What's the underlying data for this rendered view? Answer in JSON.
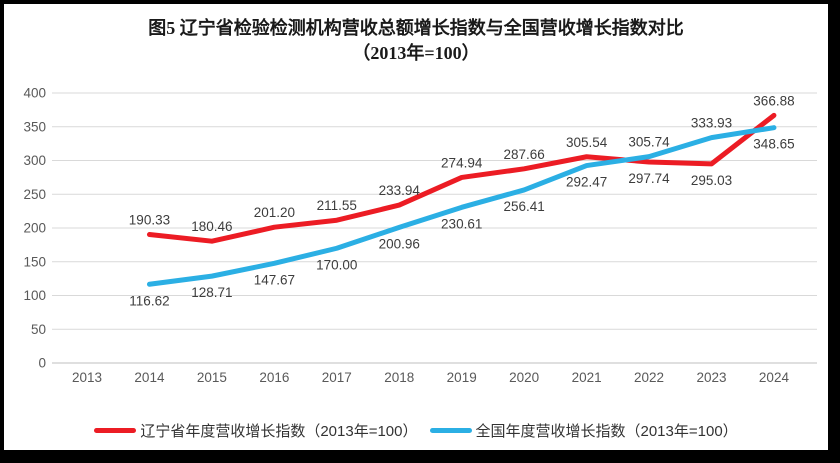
{
  "frame": {
    "background": "#ffffff",
    "border_color": "#000000"
  },
  "chart_data": {
    "type": "line",
    "title": "图5  辽宁省检验检测机构营收总额增长指数与全国营收增长指数对比",
    "subtitle": "（2013年=100）",
    "x_categories": [
      "2013",
      "2014",
      "2015",
      "2016",
      "2017",
      "2018",
      "2019",
      "2020",
      "2021",
      "2022",
      "2023",
      "2024"
    ],
    "xlabel": "",
    "ylabel": "",
    "ylim": [
      0,
      400
    ],
    "ytick_step": 50,
    "grid": true,
    "legend_position": "bottom",
    "series": [
      {
        "name": "辽宁省年度营收增长指数（2013年=100）",
        "color": "#EC1C24",
        "start_category": "2014",
        "values": [
          190.33,
          180.46,
          201.2,
          211.55,
          233.94,
          274.94,
          287.66,
          305.54,
          297.74,
          295.03,
          366.88
        ],
        "label_side": [
          "above",
          "above",
          "above",
          "above",
          "above",
          "above",
          "above",
          "above",
          "below",
          "below",
          "above"
        ]
      },
      {
        "name": "全国年度营收增长指数（2013年=100）",
        "color": "#2BAFE4",
        "start_category": "2014",
        "values": [
          116.62,
          128.71,
          147.67,
          170.0,
          200.96,
          230.61,
          256.41,
          292.47,
          305.74,
          333.93,
          348.65
        ],
        "label_side": [
          "below",
          "below",
          "below",
          "below",
          "below",
          "below",
          "below",
          "below",
          "above",
          "above",
          "below"
        ]
      }
    ]
  }
}
